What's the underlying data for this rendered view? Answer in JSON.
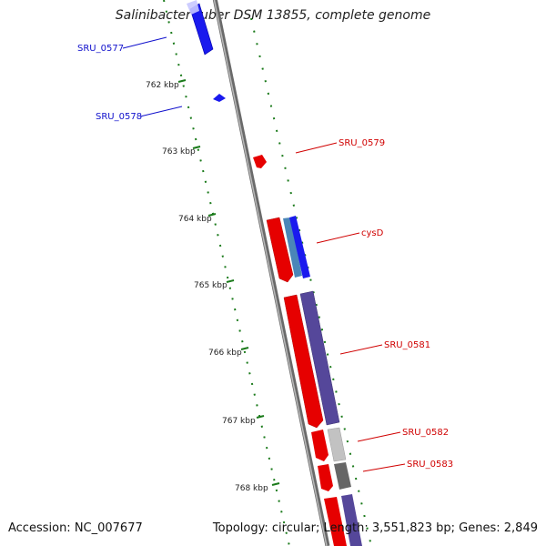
{
  "title": "Salinibacter ruber DSM 13855, complete genome",
  "footer": {
    "accession": "Accession: NC_007677",
    "summary": "Topology: circular; Length: 3,551,823 bp; Genes: 2,849"
  },
  "colors": {
    "forward_cds": "#e60000",
    "reverse_cds": "#1a1aee",
    "reverse_cds_alt": "#55479a",
    "backbone": "#8a8a8a",
    "gc_skew": "#1a7a1a",
    "label_blue": "#1010cc",
    "label_red": "#d00000"
  },
  "ticks": [
    "762 kbp",
    "763 kbp",
    "764 kbp",
    "765 kbp",
    "766 kbp",
    "767 kbp",
    "768 kbp"
  ],
  "gene_labels": [
    {
      "text": "SRU_0577",
      "color": "blue"
    },
    {
      "text": "SRU_0578",
      "color": "blue"
    },
    {
      "text": "SRU_0579",
      "color": "red"
    },
    {
      "text": "cysD",
      "color": "red"
    },
    {
      "text": "SRU_0581",
      "color": "red"
    },
    {
      "text": "SRU_0582",
      "color": "red"
    },
    {
      "text": "SRU_0583",
      "color": "red"
    }
  ]
}
